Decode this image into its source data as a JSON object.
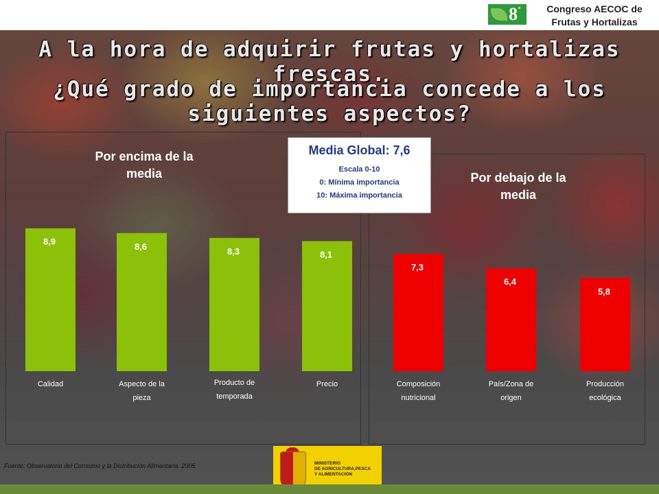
{
  "header": {
    "event_line1": "Congreso AECOC de",
    "event_line2": "Frutas y Hortalizas",
    "logo_number": "8",
    "logo_ordinal": "º"
  },
  "title": {
    "line1": "A la hora de adquirir frutas y hortalizas frescas.",
    "line2": "¿Qué grado de importancia concede a los siguientes aspectos?"
  },
  "panels": {
    "above_label_line1": "Por encima de la",
    "above_label_line2": "media",
    "below_label_line1": "Por debajo de la",
    "below_label_line2": "media"
  },
  "info": {
    "main": "Media Global: 7,6",
    "scale": "Escala 0-10",
    "min": "0: Mínima importancia",
    "max": "10: Máxima importancia"
  },
  "chart_data": {
    "type": "bar",
    "categories": [
      [
        "Calidad"
      ],
      [
        "Aspecto de la",
        "pieza"
      ],
      [
        "Producto de",
        "temporada"
      ],
      [
        "Precio"
      ],
      [
        "Composición",
        "nutricional"
      ],
      [
        "País/Zona de",
        "origen"
      ],
      [
        "Producción",
        "ecológica"
      ]
    ],
    "values": [
      8.9,
      8.6,
      8.3,
      8.1,
      7.3,
      6.4,
      5.8
    ],
    "value_labels": [
      "8,9",
      "8,6",
      "8,3",
      "8,1",
      "7,3",
      "6,4",
      "5,8"
    ],
    "group": [
      "above",
      "above",
      "above",
      "above",
      "below",
      "below",
      "below"
    ],
    "colors": {
      "above": "#8cc10a",
      "below": "#ee0000"
    },
    "ylim": [
      0,
      10
    ]
  },
  "footer": {
    "source": "Fuente: Observatorio del Consumo y la Distribución Alimentaria. 2005",
    "ministry_line1": "MINISTERIO",
    "ministry_line2": "DE AGRICULTURA,PESCA",
    "ministry_line3": "Y ALIMENTACION"
  }
}
